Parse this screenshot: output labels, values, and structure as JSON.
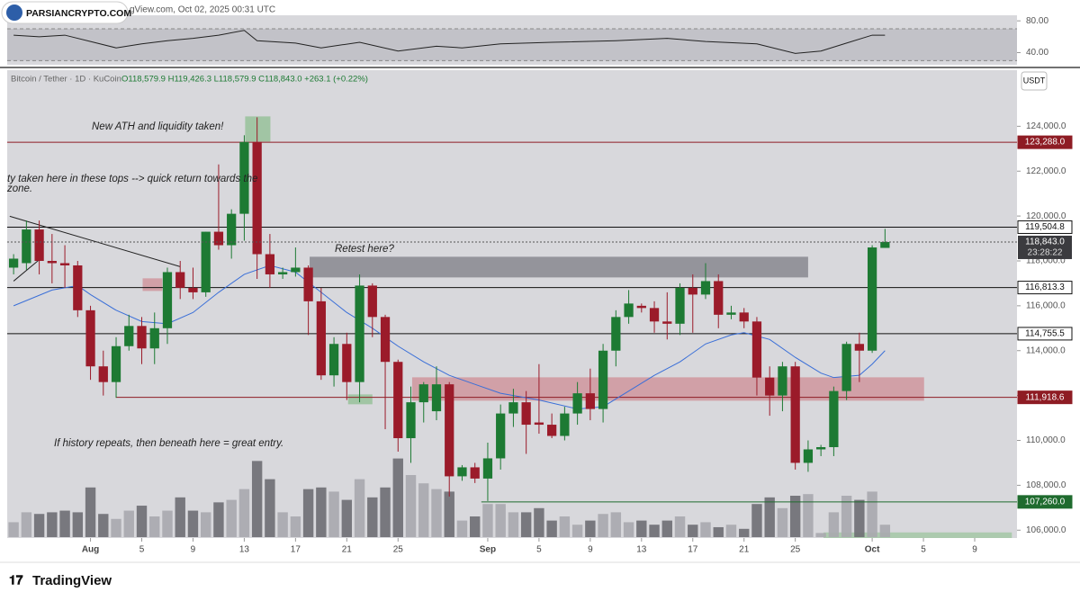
{
  "chart_data": {
    "type": "candlestick",
    "header": "gView.com, Oct 02, 2025 00:31 UTC",
    "watermark": "PARSIANCRYPTO.COM",
    "symbol": "Bitcoin / Tether · 1D · KuCoin",
    "ohlc_text": "O118,579.9 H119,426.3 L118,579.9 C118,843.0 +263.1 (+0.22%)",
    "currency": "USDT",
    "footer": "TradingView",
    "countdown": "23:28:22",
    "up_color": "#1d7a33",
    "down_color": "#9b1b2a",
    "x": [
      -6,
      -5,
      -4,
      -3,
      -2,
      -1,
      0,
      1,
      2,
      3,
      4,
      5,
      6,
      7,
      8,
      9,
      10,
      11,
      12,
      13,
      14,
      15,
      16,
      17,
      18,
      19,
      20,
      21,
      22,
      23,
      24,
      25,
      26,
      27,
      28,
      29,
      30,
      31,
      32,
      33,
      34,
      35,
      36,
      37,
      38,
      39,
      40,
      41,
      42,
      43,
      44,
      45,
      46,
      47,
      48,
      49,
      50,
      51,
      52,
      53,
      54,
      55,
      56,
      57,
      58,
      59,
      60,
      61,
      62
    ],
    "open": [
      117700,
      117900,
      119400,
      118000,
      117900,
      117800,
      115800,
      113300,
      112600,
      114200,
      115100,
      114100,
      115000,
      117500,
      116800,
      116600,
      119300,
      118700,
      120100,
      123300,
      118300,
      117400,
      117500,
      117700,
      116200,
      112900,
      114300,
      112600,
      116900,
      115500,
      113500,
      110100,
      111700,
      111300,
      112500,
      108400,
      108800,
      108300,
      109200,
      111200,
      111700,
      110800,
      110700,
      110200,
      111200,
      112100,
      111400,
      114000,
      115500,
      116000,
      115900,
      115300,
      115200,
      116800,
      116500,
      117100,
      115600,
      115700,
      115300,
      112800,
      112000,
      113300,
      109000,
      109600,
      109700,
      112200,
      114300,
      114000,
      118579.9
    ],
    "high": [
      118300,
      119800,
      119800,
      119200,
      118700,
      118000,
      116000,
      114000,
      114600,
      115600,
      115500,
      115700,
      117700,
      118000,
      117700,
      119300,
      122300,
      120300,
      123600,
      124400,
      119200,
      117700,
      118600,
      117800,
      116800,
      114600,
      114800,
      117400,
      117000,
      115600,
      113600,
      112400,
      112600,
      113300,
      112600,
      108900,
      109000,
      109900,
      111600,
      112300,
      112200,
      113400,
      111200,
      111500,
      112600,
      113200,
      114300,
      115800,
      116700,
      116100,
      116200,
      116600,
      117000,
      117400,
      117900,
      117400,
      116000,
      115900,
      115500,
      113300,
      113500,
      113500,
      110000,
      109800,
      112400,
      114400,
      114800,
      118700,
      119426.3
    ],
    "low": [
      117400,
      117600,
      117400,
      117000,
      116800,
      115500,
      112700,
      112000,
      111900,
      114000,
      113400,
      113400,
      114300,
      116300,
      116300,
      116400,
      118500,
      118100,
      118900,
      117200,
      116800,
      117200,
      117300,
      114700,
      112700,
      112400,
      111800,
      111700,
      114600,
      110500,
      109500,
      109000,
      110800,
      110900,
      107500,
      108200,
      108100,
      107300,
      108700,
      110600,
      109400,
      110300,
      110100,
      110000,
      110700,
      110900,
      110800,
      113300,
      115200,
      115700,
      114800,
      114500,
      114700,
      114800,
      116300,
      115000,
      115400,
      115000,
      112000,
      111100,
      111300,
      108700,
      108600,
      109300,
      109300,
      111800,
      112600,
      113900,
      118579.9
    ],
    "close": [
      118100,
      119400,
      118000,
      117900,
      117800,
      115800,
      113300,
      112600,
      114200,
      115100,
      114100,
      115000,
      117500,
      116800,
      116600,
      119300,
      118700,
      120100,
      123300,
      118300,
      117400,
      117500,
      117700,
      116200,
      112900,
      114300,
      112600,
      116900,
      115500,
      113500,
      110100,
      111700,
      112500,
      112500,
      108400,
      108800,
      108300,
      109200,
      111200,
      111700,
      110700,
      110700,
      110200,
      111200,
      112100,
      111400,
      114000,
      115500,
      116100,
      115900,
      115300,
      115200,
      116800,
      116500,
      117100,
      115600,
      115700,
      115300,
      112800,
      112000,
      113300,
      109000,
      109600,
      109700,
      112200,
      114300,
      114000,
      118600,
      118843.0
    ],
    "volume": {
      "ylim": [
        0,
        100
      ],
      "values": [
        18,
        30,
        28,
        30,
        32,
        30,
        60,
        28,
        22,
        32,
        38,
        25,
        32,
        48,
        32,
        30,
        42,
        45,
        58,
        92,
        70,
        30,
        25,
        58,
        60,
        55,
        45,
        70,
        48,
        60,
        95,
        75,
        65,
        58,
        55,
        20,
        25,
        40,
        40,
        30,
        30,
        35,
        20,
        25,
        15,
        20,
        28,
        30,
        18,
        20,
        15,
        20,
        25,
        15,
        18,
        12,
        15,
        10,
        40,
        48,
        35,
        50,
        52,
        5,
        30,
        50,
        45,
        55,
        15
      ]
    },
    "ma": {
      "color": "#3a6fd8",
      "x": [
        -6,
        -3,
        -1,
        0,
        2,
        4,
        6,
        8,
        10,
        12,
        14,
        16,
        18,
        20,
        22,
        24,
        26,
        28,
        30,
        32,
        35,
        38,
        40,
        42,
        44,
        46,
        48,
        50,
        51,
        53,
        55,
        57,
        58,
        60,
        61,
        62
      ],
      "values": [
        116000,
        116700,
        116900,
        116500,
        115800,
        115300,
        115200,
        115700,
        116600,
        117400,
        117800,
        117500,
        116600,
        115700,
        115000,
        114200,
        113500,
        112900,
        112500,
        112100,
        111800,
        111400,
        111500,
        112200,
        112900,
        113500,
        114300,
        114700,
        114800,
        114500,
        113700,
        113000,
        112800,
        112900,
        113400,
        114000
      ]
    },
    "rsi": {
      "ylim": [
        24.7,
        87
      ],
      "band": [
        30,
        70
      ],
      "yticks": [
        {
          "value": 80,
          "label": "80.00"
        },
        {
          "value": 40,
          "label": "40.00"
        }
      ],
      "x": [
        -6,
        -4,
        -2,
        0,
        2,
        4,
        6,
        8,
        10,
        12,
        13,
        16,
        18,
        21,
        24,
        27,
        29,
        32,
        36,
        41,
        45,
        48,
        52,
        55,
        57,
        59,
        61,
        62
      ],
      "values": [
        62,
        60,
        62,
        54,
        46,
        51,
        55,
        58,
        62,
        68,
        55,
        52,
        46,
        53,
        42,
        48,
        46,
        51,
        53,
        55,
        58,
        54,
        51,
        39,
        42,
        52,
        62,
        62
      ]
    },
    "xlim": [
      -6.5,
      72.3
    ],
    "xticks": [
      {
        "value": 0,
        "label": "Aug"
      },
      {
        "value": 4,
        "label": "5"
      },
      {
        "value": 8,
        "label": "9"
      },
      {
        "value": 12,
        "label": "13"
      },
      {
        "value": 16,
        "label": "17"
      },
      {
        "value": 20,
        "label": "21"
      },
      {
        "value": 24,
        "label": "25"
      },
      {
        "value": 31,
        "label": "Sep"
      },
      {
        "value": 35,
        "label": "5"
      },
      {
        "value": 39,
        "label": "9"
      },
      {
        "value": 43,
        "label": "13"
      },
      {
        "value": 47,
        "label": "17"
      },
      {
        "value": 51,
        "label": "21"
      },
      {
        "value": 55,
        "label": "25"
      },
      {
        "value": 61,
        "label": "Oct"
      },
      {
        "value": 65,
        "label": "5"
      },
      {
        "value": 69,
        "label": "9"
      }
    ],
    "ylim": [
      105650,
      126500
    ],
    "yticks": [
      {
        "value": 106000,
        "label": "106,000.0"
      },
      {
        "value": 108000,
        "label": "108,000.0"
      },
      {
        "value": 110000,
        "label": "110,000.0"
      },
      {
        "value": 112000,
        "label": "112,000.0"
      },
      {
        "value": 114000,
        "label": "114,000.0"
      },
      {
        "value": 116000,
        "label": "116,000.0"
      },
      {
        "value": 118000,
        "label": "118,000.0"
      },
      {
        "value": 120000,
        "label": "120,000.0"
      },
      {
        "value": 122000,
        "label": "122,000.0"
      },
      {
        "value": 124000,
        "label": "124,000.0"
      }
    ],
    "levels": [
      {
        "value": 123288.0,
        "label": "123,288.0",
        "color": "#8e1c24"
      },
      {
        "value": 119504.8,
        "label": "119,504.8",
        "color": "#111111"
      },
      {
        "value": 116813.3,
        "label": "116,813.3",
        "color": "#111111"
      },
      {
        "value": 114755.5,
        "label": "114,755.5",
        "color": "#111111"
      },
      {
        "value": 111918.6,
        "label": "111,918.6",
        "color": "#8e1c24",
        "from": 2
      },
      {
        "value": 107260.0,
        "label": "107,260.0",
        "color": "#1f6b2e",
        "from": 30.5
      }
    ],
    "last_price": {
      "value": 118843.0,
      "label": "118,843.0"
    },
    "zones": [
      {
        "x": [
          17.1,
          56.0
        ],
        "y": [
          117263,
          118185
        ],
        "color": "#7d7d86"
      },
      {
        "x": [
          25.1,
          65.05
        ],
        "y": [
          111770,
          112812
        ],
        "color": "#cf8e96"
      },
      {
        "x": [
          12.07,
          14.04
        ],
        "y": [
          123318,
          124440
        ],
        "color": "#8fbf92"
      },
      {
        "x": [
          4.07,
          5.6
        ],
        "y": [
          116660,
          117223
        ],
        "color": "#cf8e96"
      },
      {
        "x": [
          20.1,
          22.0
        ],
        "y": [
          111610,
          112050
        ],
        "color": "#8fbf92"
      },
      {
        "x": [
          57.2,
          71.9
        ],
        "y": [
          105650,
          105900
        ],
        "color": "#9ec69f"
      }
    ],
    "trendlines": [
      {
        "x": [
          -6.3,
          7.0
        ],
        "y": [
          119988,
          117744
        ]
      },
      {
        "x": [
          -6.0,
          -3.9
        ],
        "y": [
          117100,
          118100
        ]
      }
    ],
    "annotations": [
      "New ATH and liquidity taken!",
      "ty taken here in these tops --> quick return towards the",
      "zone.",
      "Retest here?",
      "If history repeats, then beneath here = great entry."
    ]
  }
}
